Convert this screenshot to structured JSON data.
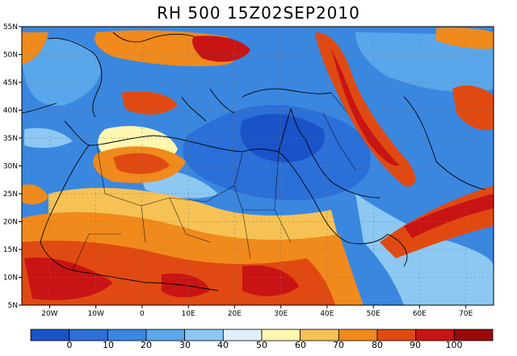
{
  "title": "RH 500  15Z02SEP2010",
  "map": {
    "lon_range": [
      -26,
      76
    ],
    "lat_range": [
      5,
      55
    ],
    "y_ticks": [
      "55N",
      "50N",
      "45N",
      "40N",
      "35N",
      "30N",
      "25N",
      "20N",
      "15N",
      "10N",
      "5N"
    ],
    "x_ticks": [
      "20W",
      "10W",
      "0",
      "10E",
      "20E",
      "30E",
      "40E",
      "50E",
      "60E",
      "70E"
    ],
    "colors": {
      "ocean_dry": "#2e7fd6",
      "moist": "#f08a1c",
      "very_moist": "#c81414",
      "coastline": "#000000"
    }
  },
  "colorbar": {
    "labels": [
      "0",
      "10",
      "20",
      "30",
      "40",
      "50",
      "60",
      "70",
      "80",
      "90",
      "100"
    ],
    "colors": [
      "#1a52c8",
      "#2b6fd8",
      "#3a87e0",
      "#5aa6ea",
      "#8cc8f2",
      "#dff0fa",
      "#fff6b0",
      "#f6c255",
      "#f08a1c",
      "#e04a12",
      "#c81414",
      "#9a0a0a"
    ]
  }
}
